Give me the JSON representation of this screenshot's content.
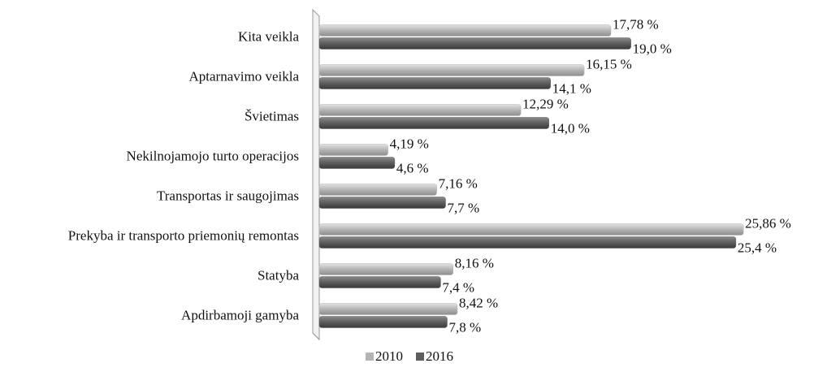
{
  "chart_data": {
    "type": "bar",
    "orientation": "horizontal",
    "categories": [
      "Kita veikla",
      "Aptarnavimo veikla",
      "Švietimas",
      "Nekilnojamojo turto operacijos",
      "Transportas ir saugojimas",
      "Prekyba ir transporto priemonių remontas",
      "Statyba",
      "Apdirbamoji gamyba"
    ],
    "series": [
      {
        "name": "2010",
        "color": "#b4b4b4",
        "values": [
          17.78,
          16.15,
          12.29,
          4.19,
          7.16,
          25.86,
          8.16,
          8.42
        ],
        "value_labels": [
          "17,78 %",
          "16,15 %",
          "12,29 %",
          "4,19 %",
          "7,16 %",
          "25,86 %",
          "8,16 %",
          "8,42 %"
        ]
      },
      {
        "name": "2016",
        "color": "#5e5e5e",
        "values": [
          19.0,
          14.1,
          14.0,
          4.6,
          7.7,
          25.4,
          7.4,
          7.8
        ],
        "value_labels": [
          "19,0 %",
          "14,1 %",
          "14,0 %",
          "4,6 %",
          "7,7 %",
          "25,4 %",
          "7,4 %",
          "7,8 %"
        ]
      }
    ],
    "xlim": [
      0,
      26
    ],
    "legend": "bottom"
  }
}
